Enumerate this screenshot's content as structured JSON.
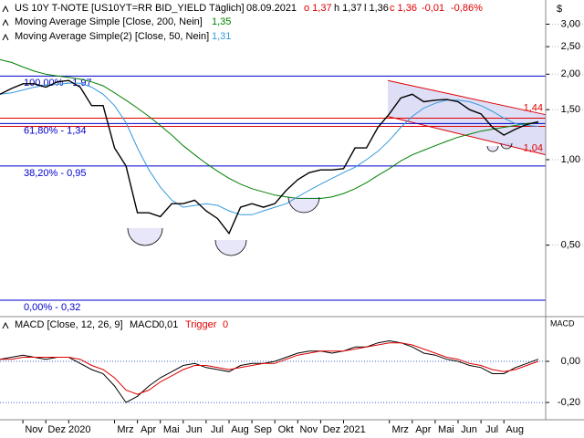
{
  "header": {
    "title": "US 10Y T-NOTE [US10YT=RR BID_YIELD Täglich]",
    "date": "08.09.2021",
    "open": "o 1,37",
    "high": "h 1,37",
    "low": "l 1,36",
    "close": "c 1,36",
    "change": "-0,01",
    "change_pct": "-0,86%"
  },
  "chart_data": [
    {
      "type": "line",
      "log_scale": true,
      "y_unit": "$",
      "categories": [
        null,
        null,
        "Nov",
        null,
        "Dez",
        null,
        "2020",
        null,
        null,
        null,
        "Mrz",
        null,
        "Apr",
        null,
        "Mai",
        null,
        "Jun",
        null,
        "Jul",
        null,
        "Aug",
        null,
        "Sep",
        null,
        "Okt",
        null,
        "Nov",
        null,
        "Dez",
        null,
        "2021",
        null,
        null,
        null,
        "Mrz",
        null,
        "Apr",
        null,
        "Mai",
        null,
        "Jun",
        null,
        "Jul",
        null,
        "Aug",
        null,
        null,
        null
      ],
      "series": [
        {
          "color": "#000000",
          "values": [
            1.7,
            1.78,
            1.85,
            1.85,
            1.8,
            1.88,
            1.9,
            1.8,
            1.55,
            1.55,
            1.1,
            0.95,
            0.65,
            0.65,
            0.63,
            0.7,
            0.7,
            0.72,
            0.66,
            0.62,
            0.55,
            0.68,
            0.7,
            0.68,
            0.7,
            0.78,
            0.85,
            0.9,
            0.92,
            0.92,
            0.93,
            1.1,
            1.1,
            1.3,
            1.45,
            1.65,
            1.7,
            1.6,
            1.62,
            1.63,
            1.6,
            1.5,
            1.45,
            1.3,
            1.22,
            1.28,
            1.33,
            1.36
          ]
        },
        {
          "name": "Moving Average Simple [Close, 200, Nein]",
          "color": "#008000",
          "last_label": "1,35",
          "values": [
            2.25,
            2.2,
            2.12,
            2.05,
            2.0,
            1.97,
            1.95,
            1.92,
            1.88,
            1.82,
            1.72,
            1.62,
            1.52,
            1.42,
            1.32,
            1.22,
            1.12,
            1.04,
            0.97,
            0.91,
            0.86,
            0.82,
            0.79,
            0.77,
            0.75,
            0.74,
            0.73,
            0.73,
            0.73,
            0.74,
            0.76,
            0.79,
            0.83,
            0.88,
            0.93,
            0.99,
            1.04,
            1.08,
            1.12,
            1.16,
            1.2,
            1.23,
            1.26,
            1.28,
            1.3,
            1.32,
            1.34,
            1.35
          ]
        },
        {
          "name": "Moving Average Simple(2) [Close, 50, Nein]",
          "color": "#3399dd",
          "last_label": "1,31",
          "values": [
            1.7,
            1.72,
            1.76,
            1.8,
            1.83,
            1.84,
            1.86,
            1.86,
            1.8,
            1.7,
            1.55,
            1.35,
            1.1,
            0.92,
            0.8,
            0.72,
            0.68,
            0.69,
            0.7,
            0.69,
            0.66,
            0.64,
            0.64,
            0.66,
            0.68,
            0.7,
            0.74,
            0.78,
            0.82,
            0.86,
            0.9,
            0.94,
            1.0,
            1.07,
            1.17,
            1.3,
            1.42,
            1.52,
            1.58,
            1.62,
            1.62,
            1.6,
            1.55,
            1.48,
            1.4,
            1.34,
            1.32,
            1.31
          ]
        }
      ],
      "ylim": [
        0.28,
        3.65
      ],
      "yticks": [
        {
          "value": 3,
          "label": "3,00"
        },
        {
          "value": 2.5,
          "label": "2,50"
        },
        {
          "value": 2,
          "label": "2,00"
        },
        {
          "value": 1.5,
          "label": "1,50"
        },
        {
          "value": 1,
          "label": "1,00"
        },
        {
          "value": 0.5,
          "label": "0,50"
        }
      ],
      "levels_color": "#0000cc",
      "levels": [
        {
          "value": 1.97,
          "label": "100,00% - 1,97"
        },
        {
          "value": 1.34,
          "label": "61,80% - 1,34"
        },
        {
          "value": 0.95,
          "label": "38,20% - 0,95"
        },
        {
          "value": 0.32,
          "label": "0,00% - 0,32"
        }
      ],
      "red_lines": [
        1.4,
        1.31
      ],
      "channel": {
        "color": "#e00000",
        "upper": {
          "start": 1.9,
          "end": {
            "value": 1.44,
            "label": "1,44"
          }
        },
        "lower": {
          "start": 1.42,
          "end": {
            "value": 1.04,
            "label": "1,04"
          }
        }
      }
    },
    {
      "type": "line",
      "title": "MACD [Close, 12, 26, 9]",
      "y_unit": "MACD",
      "series": [
        {
          "name": "MACD",
          "color": "#000000",
          "value_label": "0,01",
          "values": [
            0.01,
            0.02,
            0.03,
            0.02,
            0.01,
            0.02,
            0.02,
            -0.01,
            -0.04,
            -0.06,
            -0.12,
            -0.2,
            -0.17,
            -0.12,
            -0.08,
            -0.05,
            -0.02,
            -0.01,
            -0.03,
            -0.04,
            -0.05,
            -0.02,
            -0.01,
            -0.01,
            0.0,
            0.02,
            0.04,
            0.05,
            0.05,
            0.04,
            0.05,
            0.07,
            0.07,
            0.09,
            0.1,
            0.09,
            0.07,
            0.04,
            0.03,
            0.01,
            0.0,
            -0.02,
            -0.03,
            -0.06,
            -0.06,
            -0.03,
            -0.01,
            0.01
          ]
        },
        {
          "name": "Trigger",
          "color": "#e00000",
          "value_label": "0",
          "values": [
            0.01,
            0.01,
            0.02,
            0.02,
            0.02,
            0.02,
            0.02,
            0.01,
            -0.02,
            -0.04,
            -0.08,
            -0.14,
            -0.16,
            -0.14,
            -0.1,
            -0.07,
            -0.04,
            -0.02,
            -0.02,
            -0.03,
            -0.04,
            -0.03,
            -0.02,
            -0.01,
            -0.01,
            0.01,
            0.03,
            0.04,
            0.05,
            0.05,
            0.05,
            0.06,
            0.07,
            0.08,
            0.09,
            0.09,
            0.08,
            0.06,
            0.04,
            0.02,
            0.01,
            -0.01,
            -0.02,
            -0.04,
            -0.05,
            -0.04,
            -0.02,
            0.0
          ]
        }
      ],
      "ylim": [
        -0.284,
        0.213
      ],
      "yticks": [
        {
          "value": 0,
          "label": "0,00"
        },
        {
          "value": -0.2,
          "label": "-0,20"
        }
      ]
    }
  ]
}
